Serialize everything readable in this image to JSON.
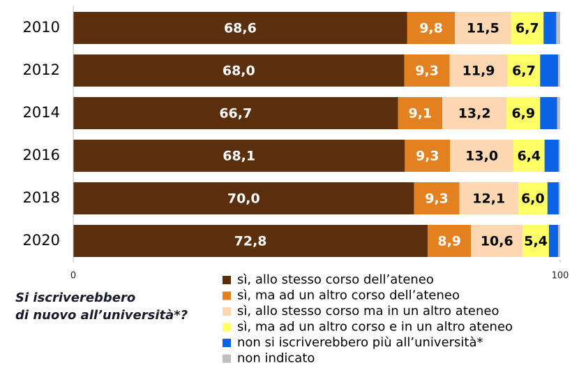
{
  "chart_data": {
    "type": "stacked_bar_horizontal",
    "categories": [
      "2010",
      "2012",
      "2014",
      "2016",
      "2018",
      "2020"
    ],
    "series": [
      {
        "name": "sì, allo stesso corso dell’ateneo",
        "color": "#5b2e0d",
        "label_color": "#ffffff",
        "values": [
          68.6,
          68.0,
          66.7,
          68.1,
          70.0,
          72.8
        ],
        "value_labels": [
          "68,6",
          "68,0",
          "66,7",
          "68,1",
          "70,0",
          "72,8"
        ]
      },
      {
        "name": "sì, ma ad un altro corso dell’ateneo",
        "color": "#e3801f",
        "label_color": "#ffffff",
        "values": [
          9.8,
          9.3,
          9.1,
          9.3,
          9.3,
          8.9
        ],
        "value_labels": [
          "9,8",
          "9,3",
          "9,1",
          "9,3",
          "9,3",
          "8,9"
        ]
      },
      {
        "name": "sì, allo stesso corso ma in un altro ateneo",
        "color": "#fcd7b2",
        "label_color": "#000000",
        "values": [
          11.5,
          11.9,
          13.2,
          13.0,
          12.1,
          10.6
        ],
        "value_labels": [
          "11,5",
          "11,9",
          "13,2",
          "13,0",
          "12,1",
          "10,6"
        ]
      },
      {
        "name": "sì, ma ad un altro corso e in un altro ateneo",
        "color": "#ffff66",
        "label_color": "#000000",
        "values": [
          6.7,
          6.7,
          6.9,
          6.4,
          6.0,
          5.4
        ],
        "value_labels": [
          "6,7",
          "6,7",
          "6,9",
          "6,4",
          "6,0",
          "5,4"
        ]
      },
      {
        "name": "non si iscriverebbero più all’università*",
        "color": "#0b63e5",
        "values": [
          2.6,
          3.7,
          3.5,
          2.9,
          2.3,
          1.9
        ]
      },
      {
        "name": "non indicato",
        "color": "#bfbfbf",
        "values": [
          0.8,
          0.4,
          0.6,
          0.3,
          0.3,
          0.4
        ]
      }
    ],
    "xlim": [
      0,
      100
    ],
    "xticks": [
      0,
      100
    ],
    "legend_title": [
      "Si iscriverebbero",
      "di nuovo all’università*?"
    ]
  }
}
